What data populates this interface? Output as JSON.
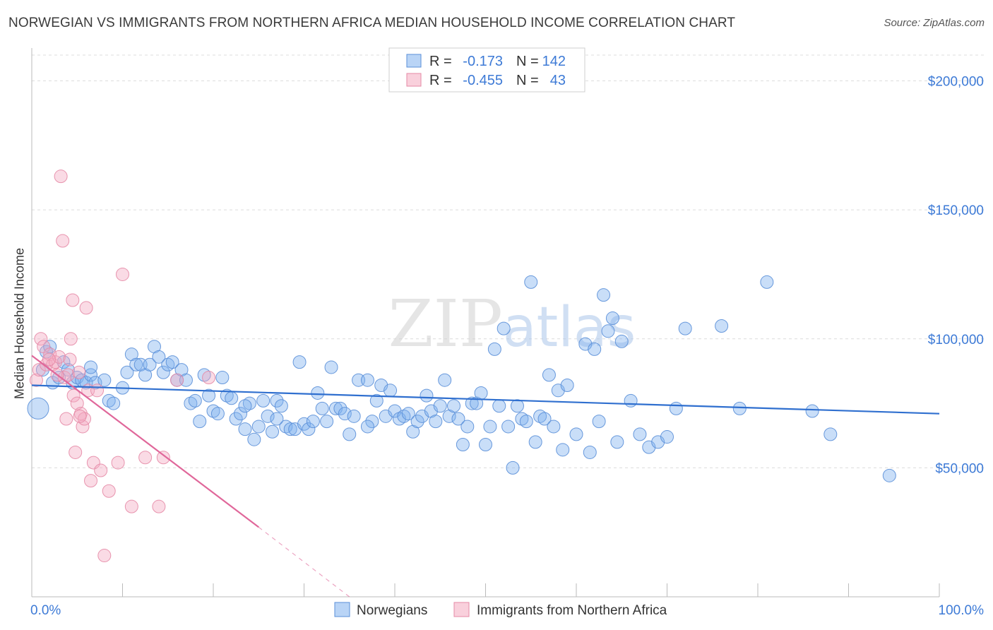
{
  "chart_data": {
    "type": "scatter",
    "title": "NORWEGIAN VS IMMIGRANTS FROM NORTHERN AFRICA MEDIAN HOUSEHOLD INCOME CORRELATION CHART",
    "source": "Source: ZipAtlas.com",
    "watermark": "ZIPatlas",
    "ylabel": "Median Household Income",
    "xlabel": "",
    "xlim": [
      0,
      100
    ],
    "ylim": [
      0,
      210000
    ],
    "y_ticks": [
      {
        "value": 50000,
        "label": "$50,000"
      },
      {
        "value": 100000,
        "label": "$100,000"
      },
      {
        "value": 150000,
        "label": "$150,000"
      },
      {
        "value": 200000,
        "label": "$200,000"
      }
    ],
    "x_tick_labels": {
      "min": "0.0%",
      "max": "100.0%"
    },
    "legend_stats": [
      {
        "r_label": "R =",
        "r_value": "-0.173",
        "n_label": "N =",
        "n_value": "142"
      },
      {
        "r_label": "R =",
        "r_value": "-0.455",
        "n_label": "N =",
        "n_value": "43"
      }
    ],
    "series": [
      {
        "name": "Norwegians",
        "color": "#7fb0ee",
        "stroke": "#5a8fd8",
        "trend_color": "#2f6fcf",
        "trend": {
          "x0": 0,
          "y0": 82000,
          "x1": 100,
          "y1": 71000
        },
        "points": [
          [
            0.7,
            73000
          ],
          [
            1.2,
            88000
          ],
          [
            1.6,
            95000
          ],
          [
            2.0,
            97000
          ],
          [
            2.3,
            83000
          ],
          [
            3.0,
            85000
          ],
          [
            3.5,
            91000
          ],
          [
            4.0,
            88000
          ],
          [
            4.5,
            83000
          ],
          [
            5.0,
            85000
          ],
          [
            5.5,
            84000
          ],
          [
            6.0,
            83000
          ],
          [
            6.5,
            86000
          ],
          [
            7.0,
            83000
          ],
          [
            8.0,
            84000
          ],
          [
            8.5,
            76000
          ],
          [
            9.0,
            75000
          ],
          [
            10.0,
            81000
          ],
          [
            10.5,
            87000
          ],
          [
            11.0,
            94000
          ],
          [
            11.5,
            90000
          ],
          [
            12.0,
            90000
          ],
          [
            12.5,
            86000
          ],
          [
            13.0,
            90000
          ],
          [
            13.5,
            97000
          ],
          [
            14.0,
            93000
          ],
          [
            14.5,
            87000
          ],
          [
            15.0,
            90000
          ],
          [
            15.5,
            91000
          ],
          [
            16.0,
            84000
          ],
          [
            16.5,
            88000
          ],
          [
            17.0,
            84000
          ],
          [
            17.5,
            75000
          ],
          [
            18.0,
            76000
          ],
          [
            18.5,
            68000
          ],
          [
            19.0,
            86000
          ],
          [
            19.5,
            78000
          ],
          [
            20.0,
            72000
          ],
          [
            20.5,
            71000
          ],
          [
            21.0,
            85000
          ],
          [
            21.5,
            78000
          ],
          [
            22.0,
            77000
          ],
          [
            22.5,
            69000
          ],
          [
            23.0,
            71000
          ],
          [
            23.5,
            65000
          ],
          [
            24.0,
            75000
          ],
          [
            24.5,
            61000
          ],
          [
            25.0,
            66000
          ],
          [
            25.5,
            76000
          ],
          [
            26.0,
            70000
          ],
          [
            26.5,
            64000
          ],
          [
            27.0,
            76000
          ],
          [
            27.5,
            74000
          ],
          [
            28.0,
            66000
          ],
          [
            28.5,
            65000
          ],
          [
            29.0,
            65000
          ],
          [
            29.5,
            91000
          ],
          [
            30.0,
            67000
          ],
          [
            30.5,
            65000
          ],
          [
            31.0,
            68000
          ],
          [
            31.5,
            79000
          ],
          [
            32.0,
            73000
          ],
          [
            32.5,
            68000
          ],
          [
            33.0,
            89000
          ],
          [
            33.5,
            73000
          ],
          [
            34.0,
            73000
          ],
          [
            34.5,
            71000
          ],
          [
            35.0,
            63000
          ],
          [
            35.5,
            70000
          ],
          [
            36.0,
            84000
          ],
          [
            37.0,
            84000
          ],
          [
            37.5,
            68000
          ],
          [
            38.0,
            76000
          ],
          [
            38.5,
            82000
          ],
          [
            39.0,
            70000
          ],
          [
            39.5,
            80000
          ],
          [
            40.0,
            72000
          ],
          [
            40.5,
            69000
          ],
          [
            41.0,
            70000
          ],
          [
            41.5,
            71000
          ],
          [
            42.0,
            64000
          ],
          [
            42.5,
            68000
          ],
          [
            43.0,
            70000
          ],
          [
            43.5,
            78000
          ],
          [
            44.0,
            72000
          ],
          [
            44.5,
            68000
          ],
          [
            45.0,
            74000
          ],
          [
            45.5,
            84000
          ],
          [
            46.0,
            70000
          ],
          [
            46.5,
            74000
          ],
          [
            47.0,
            69000
          ],
          [
            47.5,
            59000
          ],
          [
            48.0,
            66000
          ],
          [
            48.5,
            75000
          ],
          [
            49.0,
            75000
          ],
          [
            49.5,
            79000
          ],
          [
            50.0,
            59000
          ],
          [
            50.5,
            66000
          ],
          [
            51.0,
            96000
          ],
          [
            51.5,
            74000
          ],
          [
            52.0,
            104000
          ],
          [
            52.5,
            66000
          ],
          [
            53.0,
            50000
          ],
          [
            53.5,
            74000
          ],
          [
            54.0,
            69000
          ],
          [
            54.5,
            68000
          ],
          [
            55.0,
            122000
          ],
          [
            55.5,
            60000
          ],
          [
            56.0,
            70000
          ],
          [
            56.5,
            69000
          ],
          [
            57.0,
            86000
          ],
          [
            57.5,
            66000
          ],
          [
            58.0,
            80000
          ],
          [
            58.5,
            57000
          ],
          [
            59.0,
            82000
          ],
          [
            60.0,
            63000
          ],
          [
            61.0,
            98000
          ],
          [
            61.5,
            56000
          ],
          [
            62.0,
            96000
          ],
          [
            62.5,
            68000
          ],
          [
            63.0,
            117000
          ],
          [
            63.5,
            103000
          ],
          [
            64.0,
            108000
          ],
          [
            64.5,
            60000
          ],
          [
            65.0,
            99000
          ],
          [
            66.0,
            76000
          ],
          [
            67.0,
            63000
          ],
          [
            68.0,
            58000
          ],
          [
            69.0,
            60000
          ],
          [
            70.0,
            62000
          ],
          [
            71.0,
            73000
          ],
          [
            72.0,
            104000
          ],
          [
            76.0,
            105000
          ],
          [
            78.0,
            73000
          ],
          [
            81.0,
            122000
          ],
          [
            86.0,
            72000
          ],
          [
            88.0,
            63000
          ],
          [
            94.5,
            47000
          ],
          [
            6.5,
            89000
          ],
          [
            27.0,
            69000
          ],
          [
            37.0,
            66000
          ],
          [
            23.5,
            74000
          ]
        ]
      },
      {
        "name": "Immigrants from Northern Africa",
        "color": "#f4aac0",
        "stroke": "#e58aa6",
        "trend_color": "#e0679a",
        "trend": {
          "x0": 0,
          "y0": 93500,
          "x1": 25,
          "y1": 27000
        },
        "trend_dashed": {
          "x0": 25,
          "y0": 27000,
          "x1": 35,
          "y1": 0
        },
        "points": [
          [
            0.5,
            84000
          ],
          [
            0.8,
            88000
          ],
          [
            1.0,
            100000
          ],
          [
            1.3,
            97000
          ],
          [
            1.6,
            90000
          ],
          [
            2.0,
            94000
          ],
          [
            2.3,
            90000
          ],
          [
            2.6,
            91000
          ],
          [
            3.0,
            93000
          ],
          [
            3.2,
            163000
          ],
          [
            3.4,
            138000
          ],
          [
            3.6,
            85000
          ],
          [
            3.8,
            69000
          ],
          [
            4.0,
            86000
          ],
          [
            4.3,
            100000
          ],
          [
            4.5,
            115000
          ],
          [
            4.6,
            78000
          ],
          [
            4.8,
            56000
          ],
          [
            5.0,
            75000
          ],
          [
            5.2,
            87000
          ],
          [
            5.4,
            71000
          ],
          [
            5.6,
            66000
          ],
          [
            5.8,
            69000
          ],
          [
            6.0,
            112000
          ],
          [
            6.2,
            80000
          ],
          [
            6.5,
            45000
          ],
          [
            6.8,
            52000
          ],
          [
            7.2,
            80000
          ],
          [
            7.6,
            49000
          ],
          [
            8.0,
            16000
          ],
          [
            8.5,
            41000
          ],
          [
            9.5,
            52000
          ],
          [
            10.0,
            125000
          ],
          [
            11.0,
            35000
          ],
          [
            12.5,
            54000
          ],
          [
            14.0,
            35000
          ],
          [
            14.5,
            54000
          ],
          [
            16.0,
            84000
          ],
          [
            19.5,
            85000
          ],
          [
            4.2,
            92000
          ],
          [
            2.8,
            86000
          ],
          [
            1.9,
            92000
          ],
          [
            5.3,
            70000
          ]
        ]
      }
    ]
  }
}
